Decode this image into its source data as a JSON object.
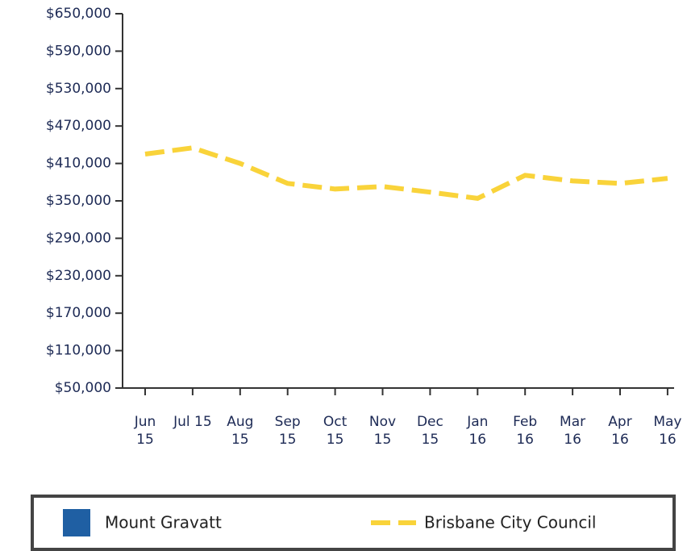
{
  "chart_data": {
    "type": "line",
    "categories": [
      "Jun 15",
      "Jul 15",
      "Aug 15",
      "Sep 15",
      "Oct 15",
      "Nov 15",
      "Dec 15",
      "Jan 16",
      "Feb 16",
      "Mar 16",
      "Apr 16",
      "May 16"
    ],
    "series": [
      {
        "name": "Mount Gravatt",
        "color": "#1f5fa3",
        "values": [
          null,
          null,
          null,
          null,
          null,
          null,
          null,
          null,
          null,
          null,
          null,
          null
        ]
      },
      {
        "name": "Brisbane City Council",
        "color": "#f9d33a",
        "values": [
          425000,
          435000,
          410000,
          378000,
          369000,
          373000,
          364000,
          354000,
          391000,
          382000,
          378000,
          386000
        ]
      }
    ],
    "ylim": [
      50000,
      650000
    ],
    "yticks": [
      {
        "value": 50000,
        "label": "$50,000"
      },
      {
        "value": 110000,
        "label": "$110,000"
      },
      {
        "value": 170000,
        "label": "$170,000"
      },
      {
        "value": 230000,
        "label": "$230,000"
      },
      {
        "value": 290000,
        "label": "$290,000"
      },
      {
        "value": 350000,
        "label": "$350,000"
      },
      {
        "value": 410000,
        "label": "$410,000"
      },
      {
        "value": 470000,
        "label": "$470,000"
      },
      {
        "value": 530000,
        "label": "$530,000"
      },
      {
        "value": 590000,
        "label": "$590,000"
      },
      {
        "value": 650000,
        "label": "$650,000"
      }
    ],
    "grid": false,
    "legend": "bottom"
  }
}
